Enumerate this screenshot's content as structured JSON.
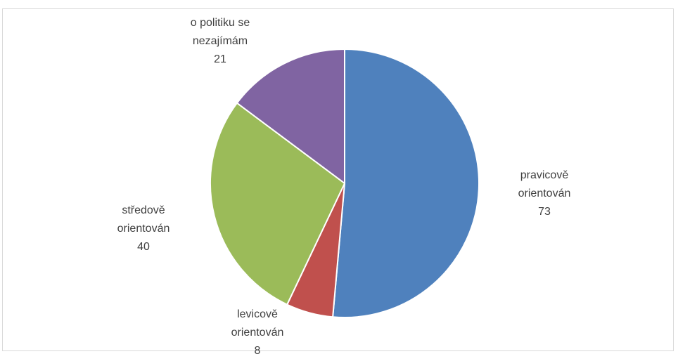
{
  "chart_data": {
    "type": "pie",
    "title": "",
    "slices": [
      {
        "label": [
          "pravicově",
          "orientován"
        ],
        "value": 73,
        "color": "#4F81BD"
      },
      {
        "label": [
          "levicově",
          "orientován"
        ],
        "value": 8,
        "color": "#C0504D"
      },
      {
        "label": [
          "středově",
          "orientován"
        ],
        "value": 40,
        "color": "#9BBB59"
      },
      {
        "label": [
          "o politiku se",
          "nezajímám"
        ],
        "value": 21,
        "color": "#8064A2"
      }
    ],
    "legend": "none",
    "data_labels": "outside"
  }
}
